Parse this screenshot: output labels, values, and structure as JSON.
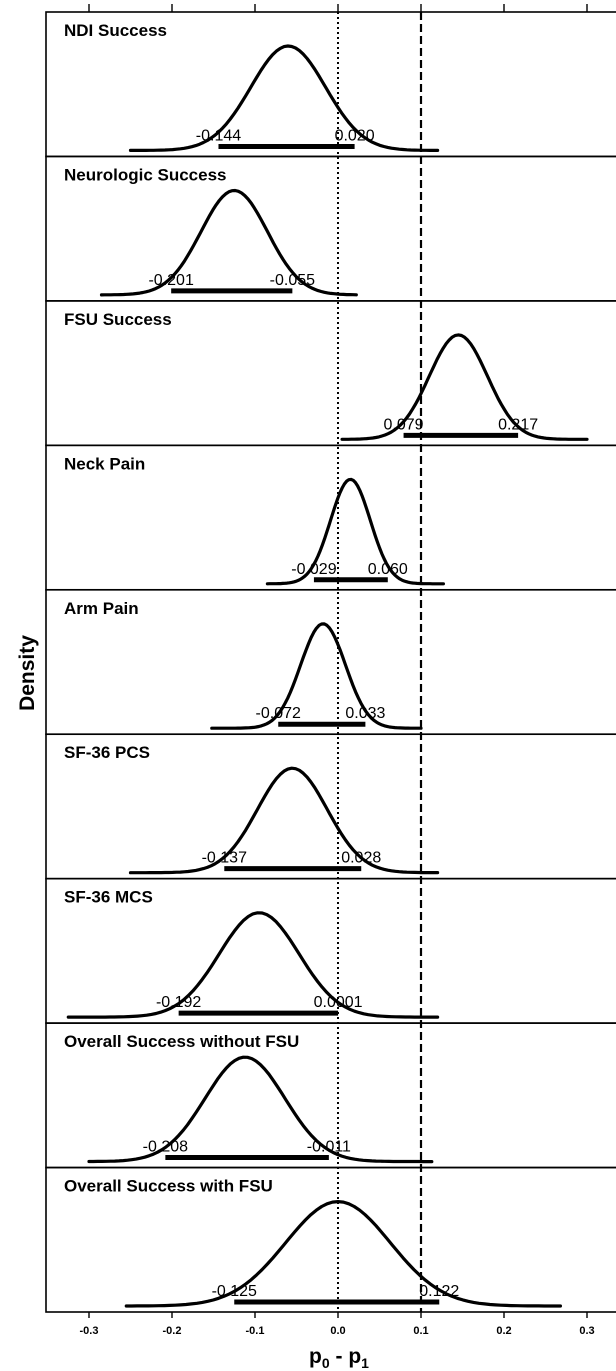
{
  "chart_data": {
    "type": "line",
    "ylabel": "Density",
    "xlabel_main": "p",
    "xlabel_sub0": "0",
    "xlabel_sep": " - p",
    "xlabel_sub1": "1",
    "xlim": [
      -0.35,
      0.33
    ],
    "x_ticks": [
      -0.3,
      -0.2,
      -0.1,
      0.0,
      0.1,
      0.2,
      0.3
    ],
    "x_tick_labels": [
      "-0.3",
      "-0.2",
      "-0.1",
      "0.0",
      "0.1",
      "0.2",
      "0.3"
    ],
    "reference_lines": [
      {
        "x": 0.0,
        "style": "dotted"
      },
      {
        "x": 0.1,
        "style": "dashed"
      }
    ],
    "panels": [
      {
        "title": "NDI Success",
        "mode": -0.06,
        "sd": 0.045,
        "support": [
          -0.25,
          0.12
        ],
        "ci": [
          -0.144,
          0.02
        ],
        "ci_labels": [
          "-0.144",
          "0.020"
        ]
      },
      {
        "title": "Neurologic Success",
        "mode": -0.125,
        "sd": 0.04,
        "support": [
          -0.285,
          0.022
        ],
        "ci": [
          -0.201,
          -0.055
        ],
        "ci_labels": [
          "-0.201",
          "-0.055"
        ]
      },
      {
        "title": "FSU Success",
        "mode": 0.145,
        "sd": 0.035,
        "support": [
          0.005,
          0.3
        ],
        "ci": [
          0.079,
          0.217
        ],
        "ci_labels": [
          "0.079",
          "0.217"
        ]
      },
      {
        "title": "Neck Pain",
        "mode": 0.015,
        "sd": 0.024,
        "support": [
          -0.085,
          0.127
        ],
        "ci": [
          -0.029,
          0.06
        ],
        "ci_labels": [
          "-0.029",
          "0.060"
        ]
      },
      {
        "title": "Arm Pain",
        "mode": -0.018,
        "sd": 0.027,
        "support": [
          -0.152,
          0.1
        ],
        "ci": [
          -0.072,
          0.033
        ],
        "ci_labels": [
          "-0.072",
          "0.033"
        ]
      },
      {
        "title": "SF-36 PCS",
        "mode": -0.055,
        "sd": 0.042,
        "support": [
          -0.25,
          0.12
        ],
        "ci": [
          -0.137,
          0.028
        ],
        "ci_labels": [
          "-0.137",
          "0.028"
        ]
      },
      {
        "title": "SF-36 MCS",
        "mode": -0.095,
        "sd": 0.048,
        "support": [
          -0.325,
          0.12
        ],
        "ci": [
          -0.192,
          0.0001
        ],
        "ci_labels": [
          "-0.192",
          "0.0001"
        ]
      },
      {
        "title": "Overall Success without FSU",
        "mode": -0.112,
        "sd": 0.048,
        "support": [
          -0.3,
          0.113
        ],
        "ci": [
          -0.208,
          -0.011
        ],
        "ci_labels": [
          "-0.208",
          "-0.011"
        ]
      },
      {
        "title": "Overall Success with FSU",
        "mode": 0.0,
        "sd": 0.063,
        "support": [
          -0.255,
          0.268
        ],
        "ci": [
          -0.125,
          0.122
        ],
        "ci_labels": [
          "-0.125",
          "0.122"
        ]
      }
    ]
  }
}
